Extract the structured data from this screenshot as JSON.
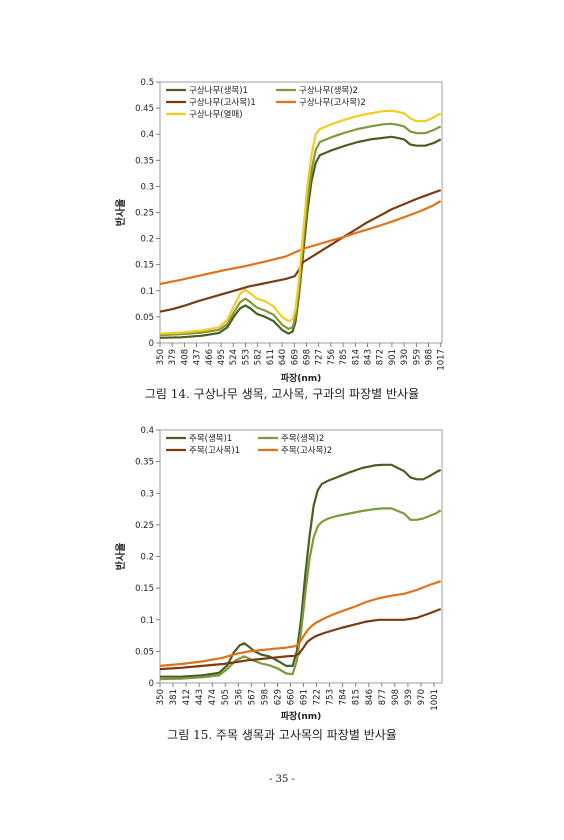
{
  "colors": {
    "dark_green": "#4a5e22",
    "light_green": "#7e9b3c",
    "dark_brown": "#7a3c12",
    "orange": "#e0721c",
    "yellow": "#f2cc22"
  },
  "captions": {
    "fig14": "그림 14. 구상나무 생목, 고사목, 구과의 파장별 반사율",
    "fig15": "그림 15. 주목 생목과 고사목의 파장별 반사율"
  },
  "page_number": "- 35 -",
  "chart_data": [
    {
      "type": "line",
      "title": "",
      "xlabel": "파장(nm)",
      "ylabel": "반사율",
      "xlim": [
        350,
        1020
      ],
      "ylim": [
        0,
        0.5
      ],
      "yticks": [
        "0",
        "0.05",
        "0.1",
        "0.15",
        "0.2",
        "0.25",
        "0.3",
        "0.35",
        "0.4",
        "0.45",
        "0.5"
      ],
      "xticks": [
        "350",
        "379",
        "408",
        "437",
        "466",
        "495",
        "524",
        "553",
        "582",
        "611",
        "640",
        "669",
        "698",
        "727",
        "756",
        "785",
        "814",
        "843",
        "872",
        "901",
        "930",
        "959",
        "988",
        "1017"
      ],
      "grid": false,
      "legend_position": "top-left",
      "series": [
        {
          "name": "구상나무(생목)1",
          "color": "#4a5e22",
          "x": [
            350,
            400,
            450,
            490,
            510,
            525,
            540,
            553,
            565,
            580,
            600,
            620,
            640,
            655,
            665,
            672,
            680,
            690,
            700,
            710,
            720,
            730,
            745,
            760,
            790,
            820,
            850,
            880,
            900,
            915,
            930,
            945,
            960,
            980,
            1000,
            1017
          ],
          "y": [
            0.01,
            0.011,
            0.014,
            0.019,
            0.03,
            0.05,
            0.066,
            0.072,
            0.066,
            0.056,
            0.05,
            0.042,
            0.025,
            0.018,
            0.022,
            0.04,
            0.09,
            0.17,
            0.25,
            0.31,
            0.345,
            0.36,
            0.365,
            0.37,
            0.378,
            0.385,
            0.39,
            0.393,
            0.395,
            0.393,
            0.39,
            0.38,
            0.378,
            0.378,
            0.383,
            0.39
          ]
        },
        {
          "name": "구상나무(생목)2",
          "color": "#7e9b3c",
          "x": [
            350,
            400,
            450,
            490,
            510,
            525,
            540,
            553,
            565,
            580,
            600,
            620,
            640,
            655,
            665,
            672,
            680,
            690,
            700,
            710,
            720,
            730,
            745,
            760,
            790,
            820,
            850,
            880,
            900,
            915,
            930,
            945,
            960,
            980,
            1000,
            1017
          ],
          "y": [
            0.015,
            0.017,
            0.02,
            0.025,
            0.036,
            0.058,
            0.078,
            0.085,
            0.078,
            0.068,
            0.062,
            0.054,
            0.035,
            0.027,
            0.03,
            0.05,
            0.1,
            0.19,
            0.27,
            0.33,
            0.37,
            0.385,
            0.39,
            0.395,
            0.403,
            0.41,
            0.415,
            0.419,
            0.42,
            0.418,
            0.415,
            0.405,
            0.402,
            0.402,
            0.408,
            0.415
          ]
        },
        {
          "name": "구상나무(고사목)1",
          "color": "#7a3c12",
          "x": [
            350,
            380,
            410,
            440,
            470,
            500,
            530,
            560,
            590,
            620,
            650,
            670,
            680,
            690,
            700,
            710,
            720,
            730,
            750,
            780,
            810,
            840,
            870,
            900,
            930,
            960,
            990,
            1017
          ],
          "y": [
            0.06,
            0.065,
            0.072,
            0.08,
            0.087,
            0.094,
            0.101,
            0.108,
            0.113,
            0.118,
            0.123,
            0.128,
            0.14,
            0.155,
            0.16,
            0.165,
            0.17,
            0.175,
            0.185,
            0.2,
            0.215,
            0.23,
            0.243,
            0.256,
            0.266,
            0.276,
            0.285,
            0.293
          ]
        },
        {
          "name": "구상나무(고사목)2",
          "color": "#e0721c",
          "x": [
            350,
            400,
            450,
            500,
            550,
            600,
            650,
            680,
            700,
            730,
            760,
            790,
            820,
            850,
            880,
            910,
            940,
            970,
            1000,
            1017
          ],
          "y": [
            0.113,
            0.121,
            0.13,
            0.139,
            0.147,
            0.156,
            0.166,
            0.177,
            0.183,
            0.19,
            0.197,
            0.204,
            0.212,
            0.219,
            0.227,
            0.235,
            0.244,
            0.253,
            0.264,
            0.272
          ]
        },
        {
          "name": "구상나무(열매)",
          "color": "#f2cc22",
          "x": [
            350,
            400,
            450,
            490,
            510,
            525,
            540,
            553,
            565,
            580,
            600,
            620,
            640,
            655,
            665,
            672,
            680,
            690,
            700,
            710,
            720,
            730,
            745,
            760,
            790,
            820,
            850,
            880,
            900,
            915,
            930,
            945,
            960,
            980,
            1000,
            1017
          ],
          "y": [
            0.018,
            0.02,
            0.024,
            0.03,
            0.044,
            0.07,
            0.094,
            0.102,
            0.095,
            0.085,
            0.08,
            0.07,
            0.05,
            0.042,
            0.045,
            0.065,
            0.12,
            0.21,
            0.3,
            0.36,
            0.4,
            0.41,
            0.415,
            0.42,
            0.428,
            0.435,
            0.44,
            0.444,
            0.445,
            0.443,
            0.44,
            0.43,
            0.425,
            0.425,
            0.432,
            0.44
          ]
        }
      ]
    },
    {
      "type": "line",
      "title": "",
      "xlabel": "파장(nm)",
      "ylabel": "반사율",
      "xlim": [
        350,
        1020
      ],
      "ylim": [
        0,
        0.4
      ],
      "yticks": [
        "0",
        "0.05",
        "0.1",
        "0.15",
        "0.2",
        "0.25",
        "0.3",
        "0.35",
        "0.4"
      ],
      "xticks": [
        "350",
        "381",
        "412",
        "443",
        "474",
        "505",
        "536",
        "567",
        "598",
        "629",
        "660",
        "691",
        "722",
        "753",
        "784",
        "815",
        "846",
        "877",
        "908",
        "939",
        "970",
        "1001"
      ],
      "grid": false,
      "legend_position": "top-left",
      "series": [
        {
          "name": "주목(생목)1",
          "color": "#4a5e22",
          "x": [
            350,
            400,
            450,
            490,
            510,
            525,
            540,
            550,
            560,
            575,
            590,
            610,
            630,
            650,
            665,
            675,
            685,
            695,
            705,
            715,
            725,
            735,
            750,
            770,
            800,
            830,
            860,
            880,
            900,
            915,
            930,
            945,
            960,
            975,
            990,
            1005,
            1017
          ],
          "y": [
            0.01,
            0.01,
            0.012,
            0.016,
            0.028,
            0.048,
            0.06,
            0.063,
            0.058,
            0.05,
            0.045,
            0.042,
            0.035,
            0.027,
            0.027,
            0.05,
            0.1,
            0.17,
            0.23,
            0.28,
            0.305,
            0.315,
            0.32,
            0.325,
            0.333,
            0.34,
            0.344,
            0.345,
            0.345,
            0.34,
            0.335,
            0.325,
            0.322,
            0.322,
            0.327,
            0.333,
            0.337
          ]
        },
        {
          "name": "주목(생목)2",
          "color": "#7e9b3c",
          "x": [
            350,
            400,
            450,
            490,
            510,
            530,
            550,
            570,
            590,
            610,
            630,
            650,
            665,
            675,
            685,
            695,
            705,
            715,
            725,
            735,
            750,
            770,
            800,
            830,
            860,
            880,
            900,
            915,
            930,
            945,
            960,
            975,
            990,
            1005,
            1017
          ],
          "y": [
            0.006,
            0.007,
            0.009,
            0.012,
            0.022,
            0.036,
            0.042,
            0.036,
            0.031,
            0.028,
            0.023,
            0.015,
            0.014,
            0.035,
            0.08,
            0.14,
            0.195,
            0.23,
            0.248,
            0.255,
            0.26,
            0.264,
            0.268,
            0.272,
            0.275,
            0.276,
            0.276,
            0.272,
            0.268,
            0.258,
            0.258,
            0.26,
            0.264,
            0.268,
            0.273
          ]
        },
        {
          "name": "주목(고사목)1",
          "color": "#7a3c12",
          "x": [
            350,
            400,
            450,
            500,
            530,
            560,
            590,
            620,
            650,
            670,
            680,
            690,
            700,
            710,
            720,
            740,
            760,
            780,
            810,
            840,
            870,
            900,
            930,
            960,
            990,
            1017
          ],
          "y": [
            0.022,
            0.024,
            0.027,
            0.03,
            0.033,
            0.036,
            0.038,
            0.04,
            0.042,
            0.043,
            0.046,
            0.055,
            0.065,
            0.07,
            0.074,
            0.079,
            0.083,
            0.087,
            0.092,
            0.097,
            0.1,
            0.1,
            0.1,
            0.103,
            0.11,
            0.117
          ]
        },
        {
          "name": "주목(고사목)2",
          "color": "#e0721c",
          "x": [
            350,
            400,
            450,
            500,
            530,
            560,
            590,
            620,
            650,
            670,
            680,
            690,
            700,
            710,
            720,
            740,
            760,
            780,
            810,
            840,
            870,
            900,
            930,
            960,
            990,
            1017
          ],
          "y": [
            0.027,
            0.03,
            0.034,
            0.04,
            0.046,
            0.05,
            0.052,
            0.054,
            0.056,
            0.058,
            0.062,
            0.073,
            0.083,
            0.09,
            0.095,
            0.102,
            0.108,
            0.113,
            0.12,
            0.128,
            0.134,
            0.138,
            0.141,
            0.147,
            0.155,
            0.161
          ]
        }
      ]
    }
  ]
}
